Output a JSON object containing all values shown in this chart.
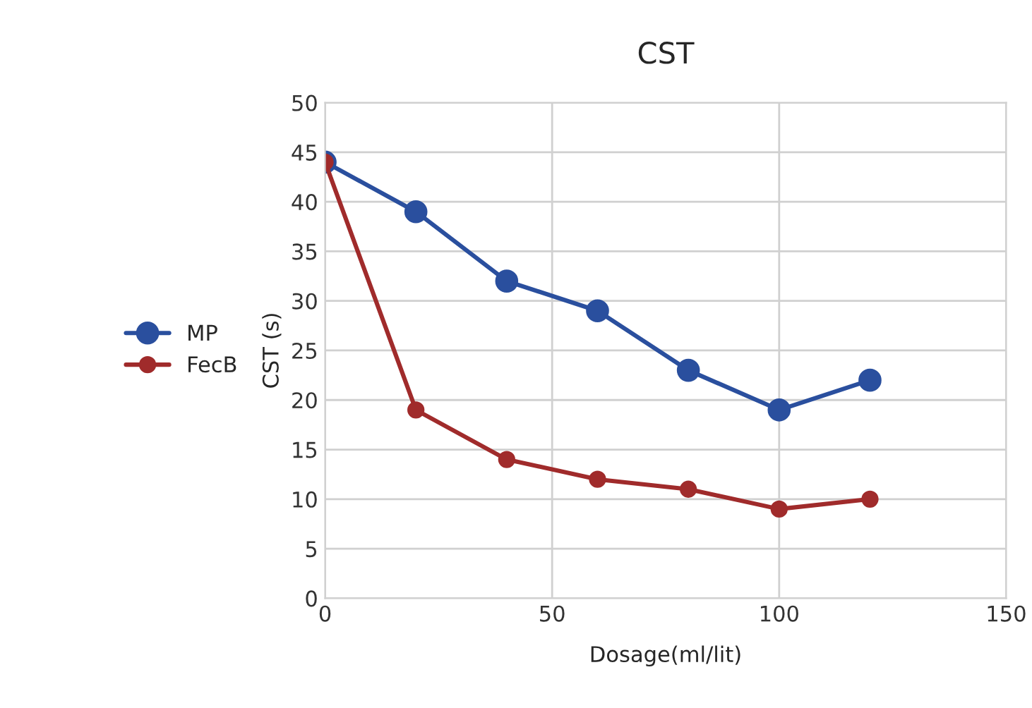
{
  "chart_data": {
    "type": "line",
    "title": "CST",
    "xlabel": "Dosage(ml/lit)",
    "ylabel": "CST (s)",
    "x": [
      0,
      20,
      40,
      60,
      80,
      100,
      120
    ],
    "series": [
      {
        "name": "MP",
        "color": "#2a4f9e",
        "values": [
          44,
          39,
          32,
          29,
          23,
          19,
          22
        ]
      },
      {
        "name": "FecB",
        "color": "#a02b2b",
        "values": [
          44,
          19,
          14,
          12,
          11,
          9,
          10
        ]
      }
    ],
    "xlim": [
      0,
      150
    ],
    "xticks": [
      0,
      50,
      100,
      150
    ],
    "ylim": [
      0,
      50
    ],
    "yticks": [
      0,
      5,
      10,
      15,
      20,
      25,
      30,
      35,
      40,
      45,
      50
    ],
    "grid": true,
    "legend": "left",
    "marker": "circle",
    "line_style": "solid"
  }
}
